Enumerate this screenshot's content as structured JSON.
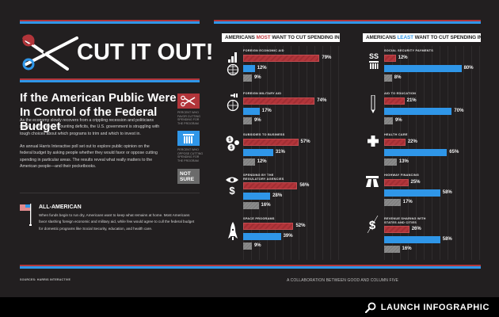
{
  "title": "CUT IT OUT!",
  "headline": "If the American Public Were In Control of the Federal Budget",
  "intro_paragraphs": [
    "As the economy slowly recovers from a crippling recession and politicians sound alarms about mounting deficits, the U.S. government is struggling with tough choices about which programs to trim and which to invest in.",
    "An annual Harris Interactive poll set out to explore public opinion on the federal budget by asking people whether they would favor or oppose cutting spending in particular areas. The results reveal what really matters to the American people—and their pocketbooks."
  ],
  "legend": [
    {
      "key": "favor",
      "icon": "scissors-icon",
      "label": "Percent who favor cutting spending for the program",
      "color": "#b2353a"
    },
    {
      "key": "oppose",
      "icon": "column-icon",
      "label": "Percent who oppose cutting spending for the program",
      "color": "#2f96e8"
    },
    {
      "key": "unsure",
      "icon": "not-sure-box",
      "label": "NOT SURE",
      "color": "#6b6b6b"
    }
  ],
  "all_american": {
    "title": "ALL-AMERICAN",
    "text": "When funds begin to run dry, Americans want to keep what remains at home. Most Americans favor slashing foreign economic and military aid, while few would agree to cull the federal budget for domestic programs like Social Security, education, and health care."
  },
  "footer": {
    "sources": "SOURCES: HARRIS INTERACTIVE",
    "collaboration": "A COLLABORATION BETWEEN GOOD AND COLUMN FIVE"
  },
  "launch_button": {
    "label": "LAUNCH INFOGRAPHIC",
    "icon": "magnifier-icon"
  },
  "colors": {
    "background": "#221f20",
    "red": "#b2353a",
    "blue": "#2f96e8",
    "gray": "#8a8a8a"
  },
  "chart_data": [
    {
      "type": "bar",
      "title": "AMERICANS MOST WANT TO CUT SPENDING IN:",
      "title_parts": {
        "pre": "AMERICANS ",
        "highlight": "MOST",
        "post": " WANT TO CUT SPENDING IN:"
      },
      "orientation": "horizontal",
      "categories": [
        "Foreign Economic Aid",
        "Foreign Military Aid",
        "Subsidies to Business",
        "Spending by the Regulatory Agencies",
        "Space Programs"
      ],
      "icons": [
        "bars-globe-icon",
        "tanks-globe-icon",
        "coins-icon",
        "eye-dollar-icon",
        "rocket-icon"
      ],
      "series": [
        {
          "name": "Favor cutting",
          "values": [
            79,
            74,
            57,
            56,
            52
          ]
        },
        {
          "name": "Oppose cutting",
          "values": [
            12,
            17,
            31,
            28,
            39
          ]
        },
        {
          "name": "Not sure",
          "values": [
            9,
            9,
            12,
            16,
            9
          ]
        }
      ],
      "value_suffix": "%",
      "xlim": [
        0,
        100
      ],
      "grid": true
    },
    {
      "type": "bar",
      "title": "AMERICANS LEAST WANT TO CUT SPENDING IN:",
      "title_parts": {
        "pre": "AMERICANS ",
        "highlight": "LEAST",
        "post": " WANT TO CUT SPENDING IN:"
      },
      "orientation": "horizontal",
      "categories": [
        "Social Security Payments",
        "Aid to Education",
        "Health Care",
        "Highway Financing",
        "Revenue Sharing with States and Cities"
      ],
      "icons": [
        "ss-column-icon",
        "pencil-icon",
        "cross-icon",
        "highway-icon",
        "dollar-slash-icon"
      ],
      "series": [
        {
          "name": "Favor cutting",
          "values": [
            12,
            21,
            22,
            25,
            26
          ]
        },
        {
          "name": "Oppose cutting",
          "values": [
            80,
            70,
            65,
            58,
            58
          ]
        },
        {
          "name": "Not sure",
          "values": [
            8,
            9,
            13,
            17,
            16
          ]
        }
      ],
      "value_suffix": "%",
      "xlim": [
        0,
        100
      ],
      "grid": true
    }
  ]
}
